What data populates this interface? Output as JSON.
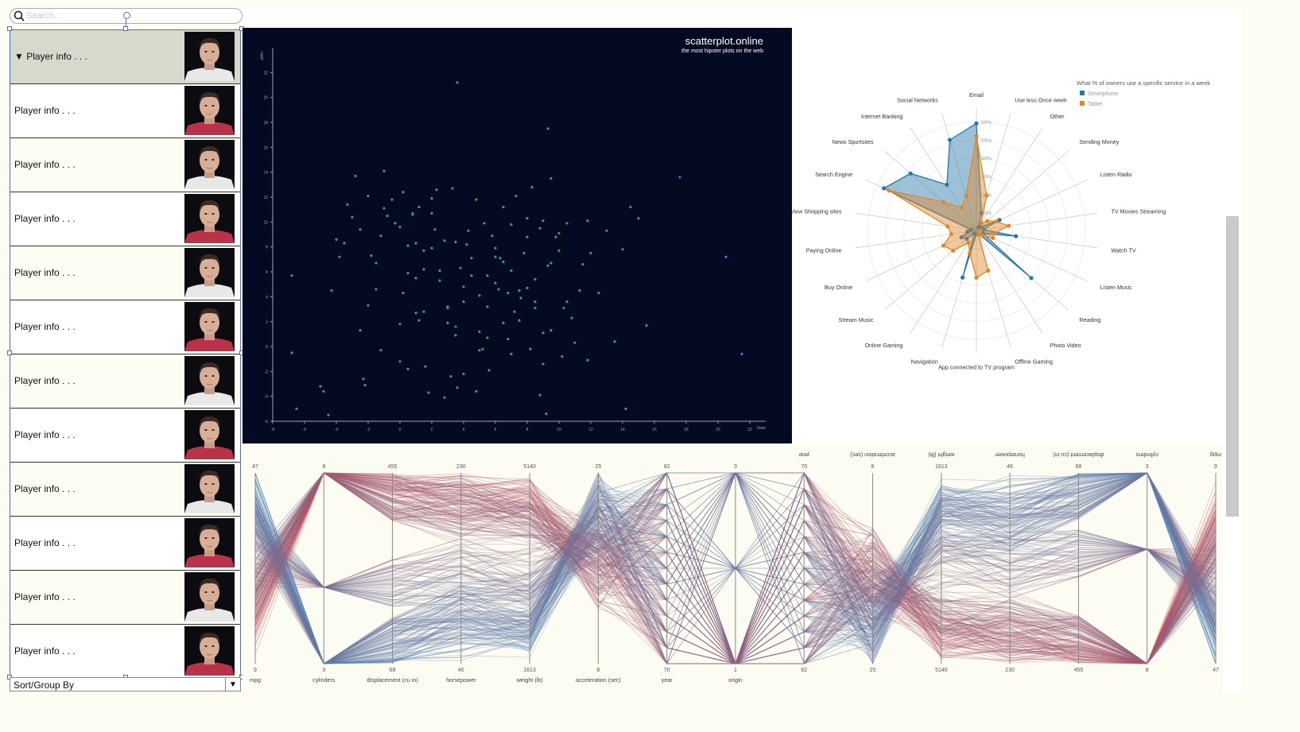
{
  "search": {
    "placeholder": "Search..."
  },
  "player_list": {
    "items": [
      {
        "label": "Player info . . .",
        "expanded": true
      },
      {
        "label": "Player info . . ."
      },
      {
        "label": "Player info . . ."
      },
      {
        "label": "Player info . . ."
      },
      {
        "label": "Player info . . ."
      },
      {
        "label": "Player info . . ."
      },
      {
        "label": "Player info . . ."
      },
      {
        "label": "Player info . . ."
      },
      {
        "label": "Player info . . ."
      },
      {
        "label": "Player info . . ."
      },
      {
        "label": "Player info . . ."
      },
      {
        "label": "Player info . . ."
      }
    ],
    "expand_glyph": "▼",
    "selected_color": "#d8d8cc",
    "alt_color": "#fdfdf3",
    "plain_color": "#ffffff"
  },
  "sort": {
    "label": "Sort/Group By",
    "arrow": "▼"
  },
  "chart_data": [
    {
      "type": "scatter",
      "title": "scatterplot.online",
      "subtitle": "the most hipster plots on the web",
      "xlabel": "Xmin",
      "ylabel": "yMin",
      "xlim": [
        -8,
        23
      ],
      "ylim": [
        -6,
        24
      ],
      "xticks": [
        -8,
        -6,
        -4,
        -2,
        0,
        2,
        4,
        6,
        8,
        10,
        12,
        14,
        16,
        18,
        20,
        22
      ],
      "yticks": [
        -6,
        -4,
        -2,
        0,
        2,
        4,
        6,
        8,
        10,
        12,
        14,
        16,
        18,
        20,
        22
      ],
      "point_color": "#2fa36a",
      "x": [
        3.6,
        9.3,
        17.6,
        20.5,
        21.5,
        -6.8,
        -6.5,
        -5,
        -4.5,
        -4.3,
        -4,
        -3.3,
        -3,
        -2.8,
        -2.5,
        -2.3,
        -2,
        -1.8,
        -1.5,
        -1.2,
        -1,
        -0.8,
        -0.5,
        -0.3,
        0,
        0.2,
        0.5,
        0.8,
        1,
        1.2,
        1.5,
        1.8,
        2,
        2.3,
        2.5,
        2.8,
        3,
        3.3,
        3.5,
        3.8,
        4,
        4.3,
        4.5,
        4.8,
        5,
        5.3,
        5.5,
        5.8,
        6,
        6.3,
        6.5,
        6.8,
        7,
        7.3,
        7.5,
        7.8,
        8,
        8.3,
        8.5,
        8.8,
        9,
        9.3,
        9.5,
        9.8,
        10,
        10.3,
        10.5,
        10.8,
        11,
        11.3,
        11.5,
        11.8,
        12,
        12.5,
        13,
        13.5,
        14,
        14.5,
        15,
        15.5,
        -1.5,
        0,
        0.5,
        1.5,
        2.5,
        3.5,
        4.5,
        5.5,
        6.5,
        7.5,
        8.5,
        9.5,
        -2,
        -1,
        1,
        2,
        3,
        4,
        5,
        6,
        7,
        8,
        9,
        10,
        -3.5,
        -2.5,
        0.5,
        1.5,
        2.5,
        3.5,
        5.5,
        6.5,
        7.5,
        8.5,
        9.5,
        10.5,
        0,
        1,
        2,
        3,
        4,
        5,
        6,
        7,
        8,
        9,
        -4.8,
        -3.8,
        -1.2,
        0.2,
        1.2,
        2.2,
        4.2,
        6.2,
        8.2,
        10.2,
        14.2,
        -6.8,
        -2.2,
        0.8,
        2.8,
        4.8,
        6.8,
        8.8,
        11.8,
        3.2,
        5.2,
        7.2,
        9.2,
        1.6,
        3.6,
        5.6,
        7.6
      ],
      "y": [
        21.2,
        17.5,
        13.6,
        7.2,
        -0.6,
        5.7,
        -5,
        -3.2,
        -5.5,
        4.5,
        8.6,
        11.4,
        10.4,
        13.7,
        9.4,
        -2.6,
        12.1,
        7.3,
        6.7,
        8.9,
        14.1,
        10.5,
        11.8,
        9.9,
        -1.2,
        12.4,
        -1.8,
        10.7,
        8.3,
        11.2,
        7.7,
        -3.7,
        7.9,
        12.6,
        6.1,
        8.5,
        3.2,
        12.7,
        8.4,
        6.3,
        -2.2,
        9.3,
        5.7,
        11.8,
        4.1,
        9.9,
        3.2,
        8.9,
        5.1,
        7.1,
        11.2,
        4.3,
        9.8,
        12.1,
        4.5,
        7.5,
        10.3,
        12.8,
        3.6,
        9.5,
        10.1,
        6.5,
        13.5,
        8.8,
        7.7,
        3.1,
        9.9,
        2.3,
        0.3,
        4.5,
        6.6,
        10.1,
        7.5,
        4.3,
        9.3,
        0.4,
        7.8,
        11.2,
        10.3,
        1.7,
        4.6,
        9.6,
        8.1,
        6.2,
        5.3,
        1.6,
        7.1,
        5.7,
        6.8,
        2.1,
        5.4,
        1.3,
        3.3,
        11.1,
        5.5,
        11.9,
        3.1,
        4.8,
        -0.3,
        7.9,
        6.1,
        4.7,
        1.1,
        9.1,
        8.3,
        1.3,
        5.9,
        2.8,
        6.1,
        0.9,
        0.7,
        1.9,
        2.1,
        3.1,
        6.7,
        3.6,
        1.8,
        2.7,
        10.7,
        1.9,
        3.6,
        1.2,
        7.2,
        -0.6,
        8.8,
        -1.4,
        -3.6,
        7.2,
        -0.3,
        4.3,
        2.1,
        9.4,
        8.2,
        4.6,
        -0.2,
        -0.8,
        -5,
        -0.5,
        -3.1,
        10.6,
        -4.1,
        -3.6,
        0.6,
        -3.9,
        -1.1,
        -2.4,
        -0.2,
        2.8,
        -5.4,
        -1.6,
        -3.3,
        -1.9,
        3.9
      ]
    },
    {
      "type": "radar",
      "legend_title": "What % of owners use a specific service in a week",
      "legend_position": "top-right",
      "axes": [
        "Email",
        "Use less Once week",
        "Other",
        "Sending Money",
        "Listen Radio",
        "TV Movies Streaming",
        "Watch TV",
        "Listen Music",
        "Reading",
        "Photo Video",
        "Offline Gaming",
        "App connected to TV program",
        "Navigation",
        "Online Gaming",
        "Stream Music",
        "Buy Online",
        "Paying Online",
        "View Shopping sites",
        "Search Engine",
        "News Sportsites",
        "Internet Banking",
        "Social Networks"
      ],
      "ticks": [
        "60%",
        "50%",
        "40%",
        "30%",
        "20%",
        "10%"
      ],
      "max": 0.6,
      "series": [
        {
          "name": "Smartphone",
          "color": "#2677a8",
          "values": [
            0.59,
            0.1,
            0.02,
            0.03,
            0.14,
            0.04,
            0.22,
            0.04,
            0.4,
            0.02,
            0.02,
            0.02,
            0.27,
            0.02,
            0.07,
            0.09,
            0.05,
            0.03,
            0.56,
            0.48,
            0.3,
            0.52
          ]
        },
        {
          "name": "Tablet",
          "color": "#e0872b",
          "values": [
            0.52,
            0.2,
            0.05,
            0.08,
            0.12,
            0.18,
            0.1,
            0.1,
            0.04,
            0.02,
            0.23,
            0.26,
            0.13,
            0.08,
            0.17,
            0.2,
            0.14,
            0.16,
            0.53,
            0.24,
            0.15,
            0.2
          ]
        }
      ]
    },
    {
      "type": "parallel_coordinates",
      "axes": [
        {
          "name": "mpg",
          "top": "47",
          "bottom": "9"
        },
        {
          "name": "cylinders",
          "top": "8",
          "bottom": "3"
        },
        {
          "name": "displacement (cu in)",
          "top": "455",
          "bottom": "68"
        },
        {
          "name": "horsepower",
          "top": "230",
          "bottom": "46"
        },
        {
          "name": "weight (lb)",
          "top": "5140",
          "bottom": "1613"
        },
        {
          "name": "acceleration (sec)",
          "top": "25",
          "bottom": "8"
        },
        {
          "name": "year",
          "top": "82",
          "bottom": "70"
        },
        {
          "name": "origin",
          "top": "3",
          "bottom": "1"
        },
        {
          "name": "year",
          "top": "70",
          "bottom": "82"
        },
        {
          "name": "acceleration (sec)",
          "top": "8",
          "bottom": "25"
        },
        {
          "name": "weight (lb)",
          "top": "1613",
          "bottom": "5140"
        },
        {
          "name": "horsepower",
          "top": "46",
          "bottom": "230"
        },
        {
          "name": "displacement (cu in)",
          "top": "68",
          "bottom": "455"
        },
        {
          "name": "cylinders",
          "top": "3",
          "bottom": "8"
        },
        {
          "name": "mpg",
          "top": "9",
          "bottom": "47"
        }
      ],
      "colors": {
        "high_mpg": "#4f86b8",
        "low_mpg": "#c9464f"
      }
    }
  ]
}
